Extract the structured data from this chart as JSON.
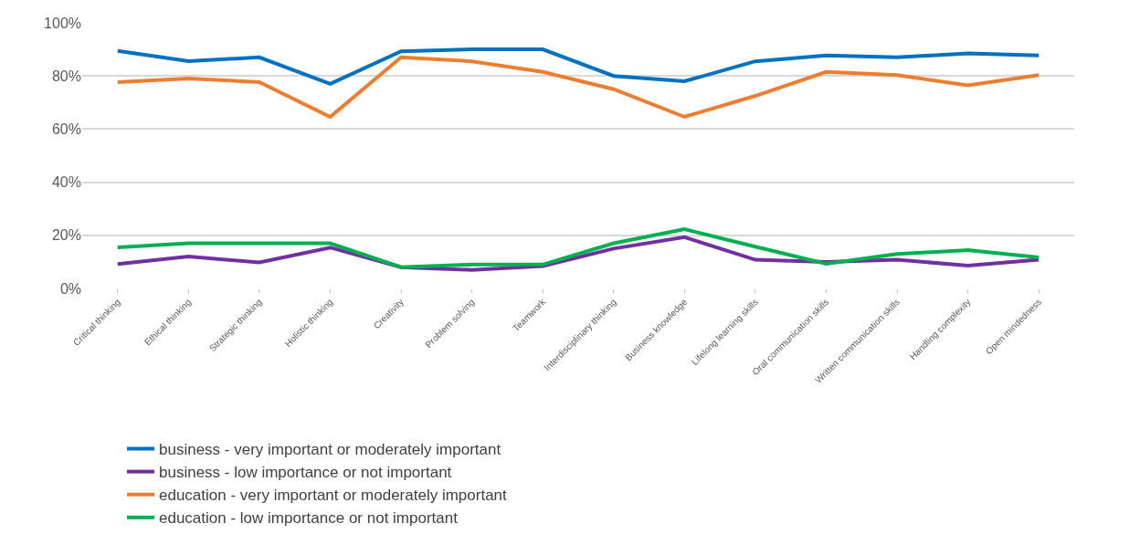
{
  "chart_data": {
    "type": "line",
    "categories": [
      "Critical thinking",
      "Ethical thinking",
      "Strategic thinking",
      "Holistic thinking",
      "Creativity",
      "Problem solving",
      "Teamwork",
      "Interdisciplinary thinking",
      "Business knowledge",
      "Lifelong learning skills",
      "Oral communication skills",
      "Written communication skills",
      "Handling complexity",
      "Open mindedness"
    ],
    "series": [
      {
        "name": "business - very important or moderately important",
        "color": "#0070c0",
        "values": [
          89.4,
          85.6,
          87,
          77,
          89.3,
          90,
          90,
          80,
          78,
          85.5,
          87.7,
          87,
          88.5,
          87.7
        ]
      },
      {
        "name": "business - low importance or not important",
        "color": "#7030a0",
        "values": [
          9.2,
          12,
          9.8,
          15.4,
          8,
          7,
          8.4,
          15,
          19.3,
          10.8,
          10,
          10.8,
          8.6,
          10.8
        ]
      },
      {
        "name": "education - very important or moderately important",
        "color": "#ed7d31",
        "values": [
          77.7,
          79,
          77.7,
          64.6,
          87,
          85.5,
          81.5,
          75,
          64.6,
          72.5,
          81.5,
          80.3,
          76.5,
          80.3
        ]
      },
      {
        "name": "education - low importance or not important",
        "color": "#00b050",
        "values": [
          15.5,
          17,
          17,
          17,
          8,
          9,
          9,
          17,
          22.3,
          15.7,
          9.3,
          13,
          14.4,
          11.7
        ]
      }
    ],
    "ylim": [
      0,
      100
    ],
    "yticks": [
      {
        "value": 0,
        "label": "0%"
      },
      {
        "value": 20,
        "label": "20%"
      },
      {
        "value": 40,
        "label": "40%"
      },
      {
        "value": 60,
        "label": "60%"
      },
      {
        "value": 80,
        "label": "80%"
      },
      {
        "value": 100,
        "label": "100%"
      }
    ],
    "grid": "y",
    "legend": "bottom",
    "marker": "none",
    "line_style": "solid"
  }
}
